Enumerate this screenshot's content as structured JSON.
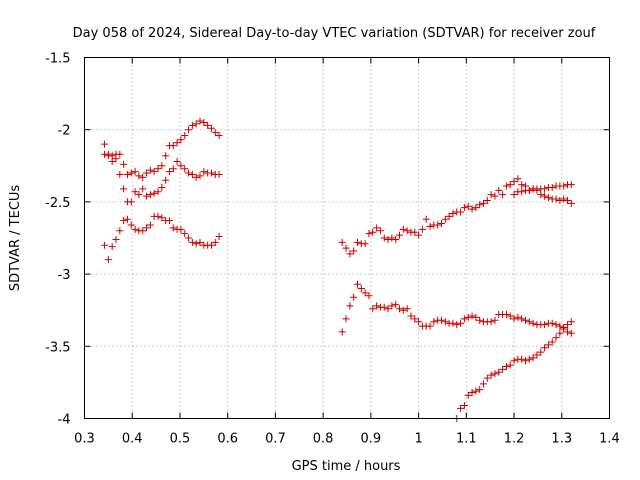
{
  "chart_data": {
    "type": "scatter",
    "title": "Day 058 of 2024, Sidereal Day-to-day VTEC variation (SDTVAR) for receiver zouf",
    "xlabel": "GPS time / hours",
    "ylabel": "SDTVAR / TECUs",
    "xlim": [
      0.3,
      1.4
    ],
    "ylim": [
      -4,
      -1.5
    ],
    "xticks": [
      "0.3",
      "0.4",
      "0.5",
      "0.6",
      "0.7",
      "0.8",
      "0.9",
      "1",
      "1.1",
      "1.2",
      "1.3",
      "1.4"
    ],
    "yticks": [
      "-1.5",
      "-2",
      "-2.5",
      "-3",
      "-3.5",
      "-4"
    ],
    "grid": true,
    "marker": "+",
    "color": "#cc0000",
    "series": [
      {
        "name": "track-upper-early",
        "x": [
          0.342,
          0.35,
          0.358,
          0.366,
          0.374,
          0.382,
          0.39,
          0.398,
          0.406,
          0.414,
          0.422,
          0.43,
          0.438,
          0.446,
          0.454,
          0.462,
          0.47,
          0.478,
          0.486,
          0.494,
          0.502,
          0.51,
          0.518,
          0.526,
          0.534,
          0.542,
          0.55,
          0.558,
          0.566,
          0.574,
          0.582
        ],
        "y": [
          -2.1,
          -2.17,
          -2.18,
          -2.2,
          -2.17,
          -2.24,
          -2.31,
          -2.3,
          -2.29,
          -2.32,
          -2.33,
          -2.3,
          -2.28,
          -2.29,
          -2.27,
          -2.25,
          -2.18,
          -2.11,
          -2.11,
          -2.09,
          -2.07,
          -2.04,
          -2.0,
          -1.97,
          -1.96,
          -1.94,
          -1.95,
          -1.97,
          -1.99,
          -2.02,
          -2.04
        ]
      },
      {
        "name": "track-middle-early",
        "x": [
          0.342,
          0.35,
          0.358,
          0.366,
          0.374,
          0.382,
          0.39,
          0.398,
          0.406,
          0.414,
          0.422,
          0.43,
          0.438,
          0.446,
          0.454,
          0.462,
          0.47,
          0.478,
          0.486,
          0.494,
          0.502,
          0.51,
          0.518,
          0.526,
          0.534,
          0.542,
          0.55,
          0.558,
          0.566,
          0.574,
          0.582
        ],
        "y": [
          -2.17,
          -2.18,
          -2.22,
          -2.17,
          -2.31,
          -2.41,
          -2.5,
          -2.5,
          -2.43,
          -2.45,
          -2.41,
          -2.46,
          -2.45,
          -2.44,
          -2.43,
          -2.4,
          -2.35,
          -2.29,
          -2.27,
          -2.22,
          -2.25,
          -2.27,
          -2.3,
          -2.31,
          -2.33,
          -2.32,
          -2.29,
          -2.3,
          -2.3,
          -2.31,
          -2.31
        ]
      },
      {
        "name": "track-lower-early",
        "x": [
          0.342,
          0.35,
          0.358,
          0.366,
          0.374,
          0.382,
          0.39,
          0.398,
          0.406,
          0.414,
          0.422,
          0.43,
          0.438,
          0.446,
          0.454,
          0.462,
          0.47,
          0.478,
          0.486,
          0.494,
          0.502,
          0.51,
          0.518,
          0.526,
          0.534,
          0.542,
          0.55,
          0.558,
          0.566,
          0.574,
          0.582
        ],
        "y": [
          -2.8,
          -2.9,
          -2.81,
          -2.76,
          -2.7,
          -2.63,
          -2.62,
          -2.66,
          -2.69,
          -2.7,
          -2.7,
          -2.68,
          -2.66,
          -2.6,
          -2.6,
          -2.61,
          -2.63,
          -2.63,
          -2.68,
          -2.69,
          -2.69,
          -2.72,
          -2.75,
          -2.78,
          -2.79,
          -2.78,
          -2.8,
          -2.8,
          -2.8,
          -2.78,
          -2.74
        ]
      },
      {
        "name": "track-upper-late",
        "x": [
          0.84,
          0.848,
          0.856,
          0.864,
          0.872,
          0.88,
          0.888,
          0.896,
          0.904,
          0.912,
          0.92,
          0.928,
          0.936,
          0.944,
          0.952,
          0.96,
          0.968,
          0.976,
          0.984,
          0.992,
          1.0,
          1.008,
          1.016,
          1.024,
          1.032,
          1.04,
          1.048,
          1.056,
          1.064,
          1.072,
          1.08,
          1.088,
          1.096,
          1.104,
          1.112,
          1.12,
          1.128,
          1.136,
          1.144,
          1.152,
          1.16,
          1.168,
          1.176,
          1.184,
          1.192,
          1.2,
          1.208,
          1.216,
          1.224,
          1.232,
          1.24,
          1.248,
          1.256,
          1.264,
          1.272,
          1.28,
          1.288,
          1.296,
          1.304,
          1.312,
          1.32
        ],
        "y": [
          -2.78,
          -2.82,
          -2.86,
          -2.84,
          -2.78,
          -2.79,
          -2.79,
          -2.72,
          -2.71,
          -2.68,
          -2.7,
          -2.75,
          -2.76,
          -2.75,
          -2.76,
          -2.73,
          -2.69,
          -2.7,
          -2.71,
          -2.71,
          -2.73,
          -2.69,
          -2.62,
          -2.67,
          -2.66,
          -2.66,
          -2.65,
          -2.62,
          -2.6,
          -2.58,
          -2.57,
          -2.57,
          -2.54,
          -2.53,
          -2.55,
          -2.54,
          -2.52,
          -2.51,
          -2.49,
          -2.45,
          -2.46,
          -2.42,
          -2.45,
          -2.39,
          -2.38,
          -2.36,
          -2.34,
          -2.38,
          -2.39,
          -2.42,
          -2.41,
          -2.42,
          -2.45,
          -2.46,
          -2.47,
          -2.48,
          -2.48,
          -2.49,
          -2.48,
          -2.49,
          -2.51
        ]
      },
      {
        "name": "track-upper-late-b",
        "x": [
          1.2,
          1.208,
          1.216,
          1.224,
          1.232,
          1.24,
          1.248,
          1.256,
          1.264,
          1.272,
          1.28,
          1.288,
          1.296,
          1.304,
          1.312,
          1.32
        ],
        "y": [
          -2.45,
          -2.43,
          -2.43,
          -2.42,
          -2.42,
          -2.41,
          -2.41,
          -2.41,
          -2.41,
          -2.4,
          -2.4,
          -2.39,
          -2.39,
          -2.39,
          -2.38,
          -2.38
        ]
      },
      {
        "name": "track-middle-late",
        "x": [
          0.84,
          0.848,
          0.856,
          0.864,
          0.872,
          0.88,
          0.888,
          0.896,
          0.904,
          0.912,
          0.92,
          0.928,
          0.936,
          0.944,
          0.952,
          0.96,
          0.968,
          0.976,
          0.984,
          0.992,
          1.0,
          1.008,
          1.016,
          1.024,
          1.032,
          1.04,
          1.048,
          1.056,
          1.064,
          1.072,
          1.08,
          1.088,
          1.096,
          1.104,
          1.112,
          1.12,
          1.128,
          1.136,
          1.144,
          1.152,
          1.16,
          1.168,
          1.176,
          1.184,
          1.192,
          1.2,
          1.208,
          1.216,
          1.224,
          1.232,
          1.24,
          1.248,
          1.256,
          1.264,
          1.272,
          1.28,
          1.288,
          1.296,
          1.304,
          1.312,
          1.32
        ],
        "y": [
          -3.4,
          -3.31,
          -3.22,
          -3.16,
          -3.07,
          -3.1,
          -3.13,
          -3.15,
          -3.24,
          -3.22,
          -3.23,
          -3.23,
          -3.24,
          -3.22,
          -3.21,
          -3.24,
          -3.25,
          -3.24,
          -3.29,
          -3.31,
          -3.33,
          -3.36,
          -3.36,
          -3.36,
          -3.33,
          -3.32,
          -3.32,
          -3.33,
          -3.34,
          -3.34,
          -3.35,
          -3.34,
          -3.31,
          -3.3,
          -3.29,
          -3.3,
          -3.32,
          -3.33,
          -3.33,
          -3.33,
          -3.32,
          -3.28,
          -3.28,
          -3.28,
          -3.29,
          -3.31,
          -3.3,
          -3.31,
          -3.32,
          -3.33,
          -3.34,
          -3.35,
          -3.35,
          -3.35,
          -3.34,
          -3.34,
          -3.35,
          -3.36,
          -3.38,
          -3.4,
          -3.41
        ]
      },
      {
        "name": "track-lower-late",
        "x": [
          1.08,
          1.088,
          1.096,
          1.104,
          1.112,
          1.12,
          1.128,
          1.136,
          1.144,
          1.152,
          1.16,
          1.168,
          1.176,
          1.184,
          1.192,
          1.2,
          1.208,
          1.216,
          1.224,
          1.232,
          1.24,
          1.248,
          1.256,
          1.264,
          1.272,
          1.28,
          1.288,
          1.296,
          1.304,
          1.312,
          1.32
        ],
        "y": [
          -4.0,
          -3.93,
          -3.91,
          -3.84,
          -3.82,
          -3.81,
          -3.8,
          -3.76,
          -3.72,
          -3.7,
          -3.69,
          -3.68,
          -3.66,
          -3.64,
          -3.63,
          -3.6,
          -3.59,
          -3.59,
          -3.6,
          -3.59,
          -3.58,
          -3.56,
          -3.54,
          -3.51,
          -3.49,
          -3.47,
          -3.44,
          -3.41,
          -3.37,
          -3.35,
          -3.33
        ]
      }
    ]
  }
}
